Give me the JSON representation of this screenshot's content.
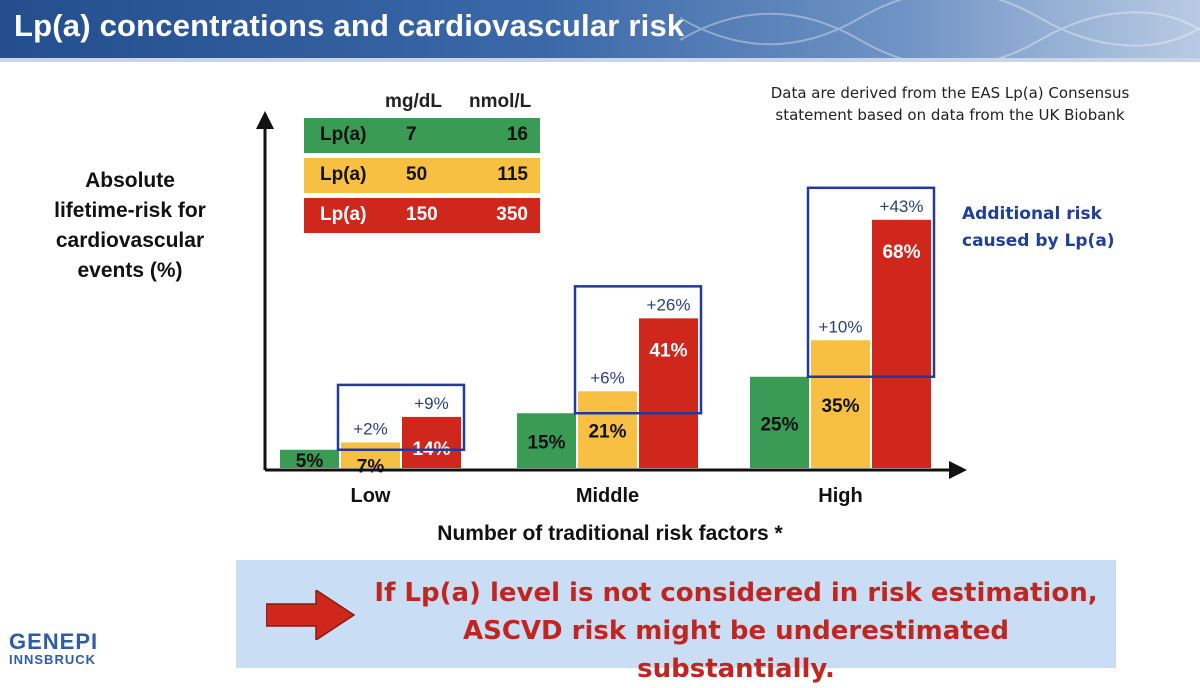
{
  "header": {
    "title": "Lp(a) concentrations and cardiovascular risk"
  },
  "note": {
    "line1": "Data are derived from the EAS Lp(a) Consensus",
    "line2": "statement based on data from the UK Biobank"
  },
  "legend": {
    "col_mg": "mg/dL",
    "col_nmol": "nmol/L",
    "rows": [
      {
        "label": "Lp(a)",
        "mg": "7",
        "nmol": "16",
        "color": "#3a9b55"
      },
      {
        "label": "Lp(a)",
        "mg": "50",
        "nmol": "115",
        "color": "#f7c043"
      },
      {
        "label": "Lp(a)",
        "mg": "150",
        "nmol": "350",
        "color": "#d0271d"
      }
    ]
  },
  "additional_risk": {
    "line1": "Additional risk",
    "line2": "caused by Lp(a)"
  },
  "banner": {
    "line1": "If Lp(a) level is not considered in risk estimation,",
    "line2": "ASCVD risk might be underestimated substantially.",
    "arrow_color": "#d0271d"
  },
  "logo": {
    "line1": "GENEPI",
    "line2": "INNSBRUCK"
  },
  "chart_data": {
    "type": "bar",
    "title": "",
    "ylabel_lines": [
      "Absolute",
      "lifetime-risk for",
      "cardiovascular",
      "events  (%)"
    ],
    "xlabel": "Number of traditional risk factors *",
    "categories": [
      "Low",
      "Middle",
      "High"
    ],
    "series": [
      {
        "values": [
          5,
          15,
          25
        ],
        "labels": [
          "5%",
          "15%",
          "25%"
        ],
        "color": "#3a9b55",
        "label_color": "#111111"
      },
      {
        "values": [
          7,
          21,
          35
        ],
        "labels": [
          "7%",
          "21%",
          "35%"
        ],
        "color": "#f7c043",
        "label_color": "#111111"
      },
      {
        "values": [
          14,
          41,
          68
        ],
        "labels": [
          "14%",
          "41%",
          "68%"
        ],
        "color": "#d0271d",
        "label_color": "#ffffff"
      }
    ],
    "increments": [
      {
        "yellow": "+2%",
        "red": "+9%"
      },
      {
        "yellow": "+6%",
        "red": "+26%"
      },
      {
        "yellow": "+10%",
        "red": "+43%"
      }
    ],
    "ylim": [
      0,
      100
    ],
    "grid": false,
    "legend_position": "top-left"
  }
}
